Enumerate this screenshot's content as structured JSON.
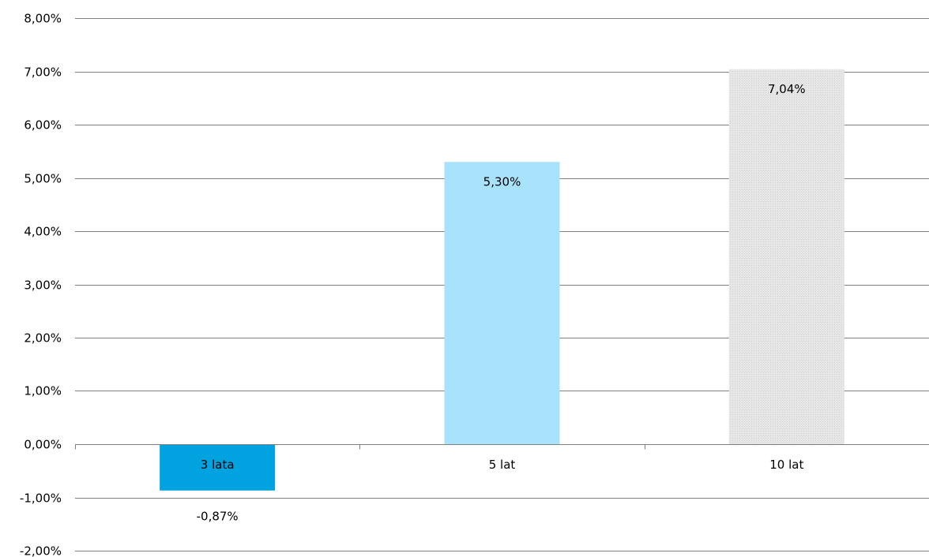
{
  "chart_data": {
    "type": "bar",
    "title": "",
    "xlabel": "",
    "ylabel": "",
    "categories": [
      "3 lata",
      "5 lat",
      "10 lat"
    ],
    "values": [
      -0.87,
      5.3,
      7.04
    ],
    "value_labels": [
      "-0,87%",
      "5,30%",
      "7,04%"
    ],
    "ylim": [
      -2,
      8
    ],
    "yticks": [
      8,
      7,
      6,
      5,
      4,
      3,
      2,
      1,
      0,
      -1,
      -2
    ],
    "ytick_labels": [
      "8,00%",
      "7,00%",
      "6,00%",
      "5,00%",
      "4,00%",
      "3,00%",
      "2,00%",
      "1,00%",
      "0,00%",
      "-1,00%",
      "-2,00%"
    ],
    "grid": true,
    "legend": "none",
    "colors": [
      "#00a2e0",
      "#a9e2fb",
      "#e8e8e8"
    ],
    "grid_color": "#808080",
    "text_color": "#000000"
  }
}
